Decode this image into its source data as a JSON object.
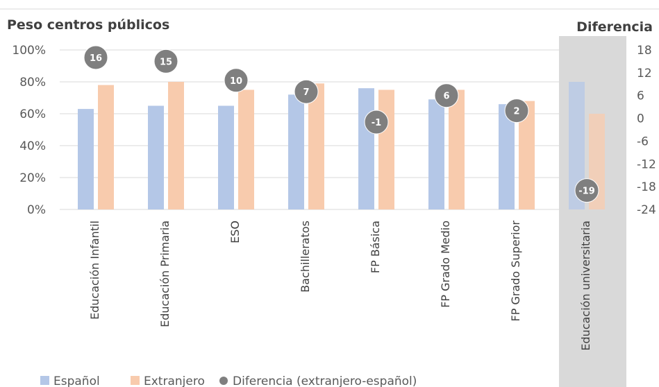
{
  "chart_data": {
    "type": "bar",
    "title_left": "Peso centros públicos",
    "title_right": "Diferencia",
    "categories": [
      "Educación Infantil",
      "Educación Primaria",
      "ESO",
      "Bachilleratos",
      "FP Básica",
      "FP Grado Medio",
      "FP Grado Superior",
      "Educación universitaria"
    ],
    "highlighted_category": "Educación universitaria",
    "series": [
      {
        "name": "Español",
        "color": "#b4c7e7",
        "values": [
          63,
          65,
          65,
          72,
          76,
          69,
          66,
          80
        ]
      },
      {
        "name": "Extranjero",
        "color": "#f8cbad",
        "values": [
          78,
          80,
          75,
          79,
          75,
          75,
          68,
          60
        ]
      },
      {
        "name": "Diferencia (extranjero-español)",
        "type": "scatter",
        "axis": "right",
        "color": "#7f7f7f",
        "values": [
          16,
          15,
          10,
          7,
          -1,
          6,
          2,
          -19
        ]
      }
    ],
    "y_left": {
      "min": 0,
      "max": 100,
      "ticks": [
        "0%",
        "20%",
        "40%",
        "60%",
        "80%",
        "100%"
      ]
    },
    "y_right": {
      "min": -24,
      "max": 18,
      "ticks": [
        "18",
        "12",
        "6",
        "0",
        "-6",
        "-12",
        "-18",
        "-24"
      ]
    },
    "grid": true,
    "legend_position": "bottom"
  }
}
